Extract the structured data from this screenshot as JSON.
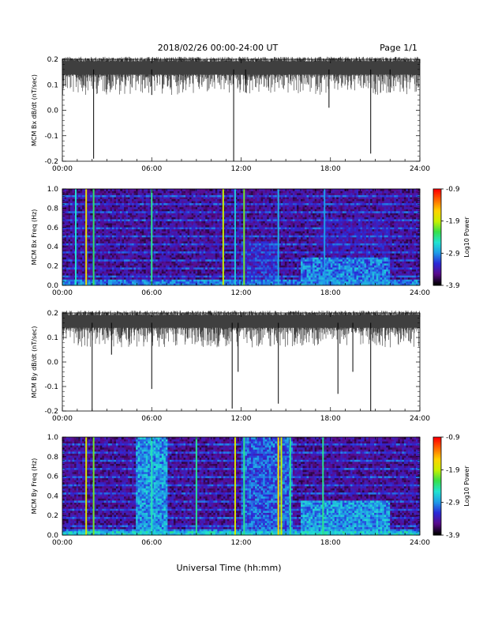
{
  "header": {
    "date_range": "2018/02/26  00:00-24:00 UT",
    "page": "Page 1/1"
  },
  "footer": {
    "xlabel": "Universal Time (hh:mm)"
  },
  "colors": {
    "background": "#ffffff",
    "trace": "#000000",
    "colormap": [
      "#000000",
      "#5a0a8c",
      "#2a2ad8",
      "#1f9be8",
      "#22e3d0",
      "#36e04a",
      "#c8f000",
      "#ffd200",
      "#ff6a00",
      "#ff0000"
    ]
  },
  "chart_data": [
    {
      "type": "line",
      "ylabel": "MCM Bx dB/dt (nT/sec)",
      "ylim": [
        -0.2,
        0.2
      ],
      "yticks": [
        "0.2",
        "0.1",
        "0.0",
        "-0.1",
        "-0.2"
      ],
      "xlim": [
        0,
        24
      ],
      "xticks": [
        "00:00",
        "06:00",
        "12:00",
        "18:00",
        "24:00"
      ],
      "series": [
        {
          "baseline": 0.16,
          "spikes": [
            {
              "x": 2.1,
              "y": -0.19
            },
            {
              "x": 6.0,
              "y": 0.06
            },
            {
              "x": 11.5,
              "y": -0.2
            },
            {
              "x": 12.3,
              "y": 0.07
            },
            {
              "x": 17.9,
              "y": 0.01
            },
            {
              "x": 20.7,
              "y": -0.17
            },
            {
              "x": 22.0,
              "y": 0.07
            }
          ]
        }
      ]
    },
    {
      "type": "heatmap",
      "ylabel": "MCM Bx Freq (Hz)",
      "ylim": [
        0.0,
        1.0
      ],
      "yticks": [
        "1.0",
        "0.8",
        "0.6",
        "0.4",
        "0.2",
        "0.0"
      ],
      "xlim": [
        0,
        24
      ],
      "xticks": [
        "00:00",
        "06:00",
        "12:00",
        "18:00",
        "24:00"
      ],
      "colorbar_label": "Log10 Power",
      "colorbar_ticks": [
        "-0.9",
        "-1.9",
        "-2.9",
        "-3.9"
      ],
      "clim": [
        -3.9,
        -0.9
      ],
      "vertical_lines": [
        {
          "x": 0.9,
          "level": -2.6
        },
        {
          "x": 1.6,
          "level": -1.7
        },
        {
          "x": 2.1,
          "level": -2.3
        },
        {
          "x": 6.0,
          "level": -2.4
        },
        {
          "x": 10.8,
          "level": -1.9
        },
        {
          "x": 11.6,
          "level": -2.7
        },
        {
          "x": 12.2,
          "level": -2.1
        },
        {
          "x": 14.5,
          "level": -2.8
        },
        {
          "x": 17.6,
          "level": -2.9
        }
      ],
      "activity_regions": [
        {
          "x0": 12.0,
          "x1": 14.5,
          "f0": 0.0,
          "f1": 0.45,
          "level": -3.3
        },
        {
          "x0": 16.0,
          "x1": 22.0,
          "f0": 0.0,
          "f1": 0.3,
          "level": -3.0
        },
        {
          "x0": 17.5,
          "x1": 22.0,
          "f0": 0.0,
          "f1": 0.7,
          "level": -3.5
        }
      ]
    },
    {
      "type": "line",
      "ylabel": "MCM By dB/dt (nT/sec)",
      "ylim": [
        -0.2,
        0.2
      ],
      "yticks": [
        "0.2",
        "0.1",
        "0.0",
        "-0.1",
        "-0.2"
      ],
      "xlim": [
        0,
        24
      ],
      "xticks": [
        "00:00",
        "06:00",
        "12:00",
        "18:00",
        "24:00"
      ],
      "series": [
        {
          "baseline": 0.16,
          "spikes": [
            {
              "x": 2.0,
              "y": -0.2
            },
            {
              "x": 3.3,
              "y": 0.03
            },
            {
              "x": 6.0,
              "y": -0.11
            },
            {
              "x": 11.4,
              "y": -0.19
            },
            {
              "x": 11.8,
              "y": -0.04
            },
            {
              "x": 14.5,
              "y": -0.17
            },
            {
              "x": 18.5,
              "y": -0.13
            },
            {
              "x": 19.5,
              "y": -0.04
            },
            {
              "x": 20.7,
              "y": -0.2
            }
          ]
        }
      ]
    },
    {
      "type": "heatmap",
      "ylabel": "MCM By Freq (Hz)",
      "ylim": [
        0.0,
        1.0
      ],
      "yticks": [
        "1.0",
        "0.8",
        "0.6",
        "0.4",
        "0.2",
        "0.0"
      ],
      "xlim": [
        0,
        24
      ],
      "xticks": [
        "00:00",
        "06:00",
        "12:00",
        "18:00",
        "24:00"
      ],
      "colorbar_label": "Log10 Power",
      "colorbar_ticks": [
        "-0.9",
        "-1.9",
        "-2.9",
        "-3.9"
      ],
      "clim": [
        -3.9,
        -0.9
      ],
      "vertical_lines": [
        {
          "x": 1.6,
          "level": -1.8
        },
        {
          "x": 2.1,
          "level": -2.1
        },
        {
          "x": 6.0,
          "level": -2.5
        },
        {
          "x": 9.0,
          "level": -2.4
        },
        {
          "x": 11.6,
          "level": -1.8
        },
        {
          "x": 12.2,
          "level": -2.4
        },
        {
          "x": 14.5,
          "level": -1.6
        },
        {
          "x": 14.7,
          "level": -1.9
        },
        {
          "x": 15.3,
          "level": -2.4
        },
        {
          "x": 17.5,
          "level": -2.4
        }
      ],
      "activity_regions": [
        {
          "x0": 5.0,
          "x1": 7.0,
          "f0": 0.0,
          "f1": 1.0,
          "level": -2.9
        },
        {
          "x0": 12.0,
          "x1": 15.5,
          "f0": 0.0,
          "f1": 1.0,
          "level": -3.1
        },
        {
          "x0": 16.0,
          "x1": 22.0,
          "f0": 0.0,
          "f1": 0.35,
          "level": -2.9
        },
        {
          "x0": 0.0,
          "x1": 24.0,
          "f0": 0.0,
          "f1": 0.05,
          "level": -2.7
        }
      ]
    }
  ]
}
